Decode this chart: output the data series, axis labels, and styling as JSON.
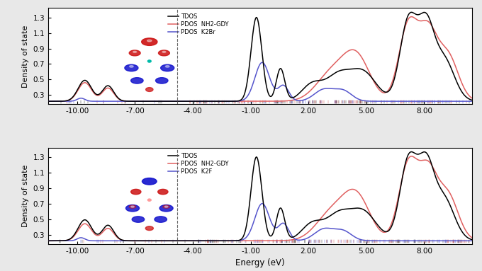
{
  "xlim": [
    -11.5,
    10.5
  ],
  "ylim": [
    0.18,
    1.42
  ],
  "yticks": [
    0.3,
    0.5,
    0.7,
    0.9,
    1.1,
    1.3
  ],
  "xticks": [
    -10,
    -7,
    -4,
    -1,
    2,
    5,
    8
  ],
  "xticklabels": [
    "-10.00",
    "-7.00",
    "-4.00",
    "-1.00",
    "2.00",
    "5.00",
    "8.00"
  ],
  "xlabel": "Energy (eV)",
  "ylabel": "Density of state",
  "vline_x": -4.8,
  "panel1_legend": [
    "TDOS",
    "PDOS  NH2-GDY",
    "PDOS  K2Br"
  ],
  "panel2_legend": [
    "TDOS",
    "PDOS  NH2-GDY",
    "PDOS  K2F"
  ],
  "black": "#000000",
  "red": "#e06060",
  "blue": "#4444bb",
  "bg_color": "#e8e8e8",
  "plot_bg": "white"
}
